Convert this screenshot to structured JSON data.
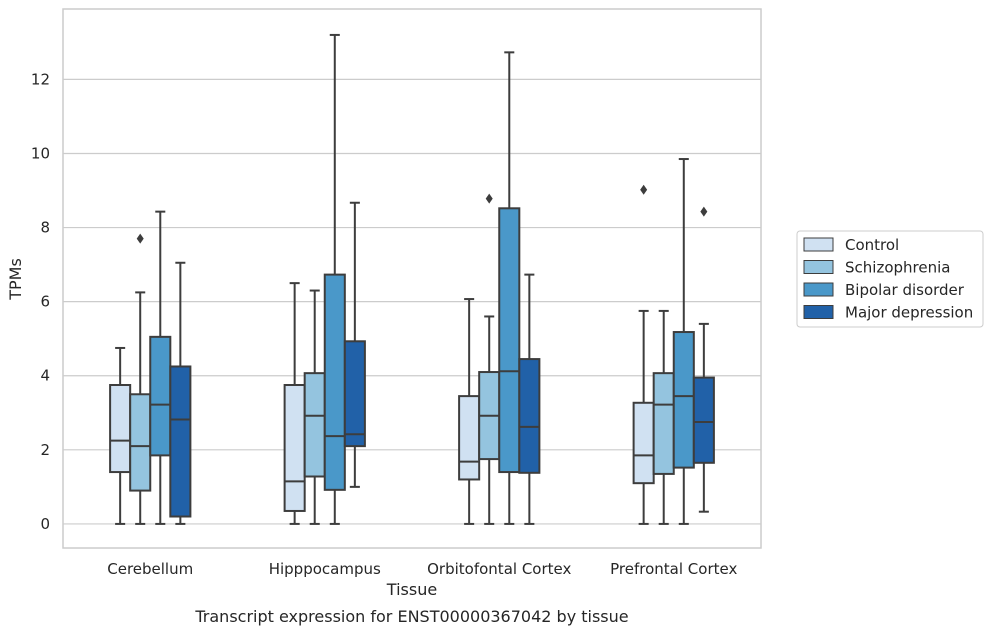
{
  "chart_data": {
    "type": "boxplot",
    "title": "",
    "caption": "Transcript expression for ENST00000367042 by tissue",
    "xlabel": "Tissue",
    "ylabel": "TPMs",
    "ylim": [
      -0.65,
      13.9
    ],
    "yticks": [
      "0",
      "2",
      "4",
      "6",
      "8",
      "10",
      "12"
    ],
    "grid": "horizontal",
    "legend_position": "right",
    "categories": [
      "Cerebellum",
      "Hipppocampus",
      "Orbitofontal Cortex",
      "Prefrontal Cortex"
    ],
    "series": [
      {
        "name": "Control",
        "color": "#d0e1f2",
        "boxes": [
          {
            "whislo": 0,
            "q1": 1.4,
            "med": 2.25,
            "q3": 3.75,
            "whishi": 4.75,
            "fliers": []
          },
          {
            "whislo": 0,
            "q1": 0.35,
            "med": 1.15,
            "q3": 3.75,
            "whishi": 6.5,
            "fliers": []
          },
          {
            "whislo": 0,
            "q1": 1.2,
            "med": 1.68,
            "q3": 3.45,
            "whishi": 6.07,
            "fliers": []
          },
          {
            "whislo": 0,
            "q1": 1.1,
            "med": 1.85,
            "q3": 3.27,
            "whishi": 5.75,
            "fliers": [
              9.02
            ]
          }
        ]
      },
      {
        "name": "Schizophrenia",
        "color": "#94c4df",
        "boxes": [
          {
            "whislo": 0,
            "q1": 0.9,
            "med": 2.1,
            "q3": 3.5,
            "whishi": 6.25,
            "fliers": [
              7.7
            ]
          },
          {
            "whislo": 0,
            "q1": 1.28,
            "med": 2.92,
            "q3": 4.07,
            "whishi": 6.3,
            "fliers": []
          },
          {
            "whislo": 0,
            "q1": 1.75,
            "med": 2.92,
            "q3": 4.1,
            "whishi": 5.6,
            "fliers": [
              8.78
            ]
          },
          {
            "whislo": 0,
            "q1": 1.35,
            "med": 3.22,
            "q3": 4.07,
            "whishi": 5.75,
            "fliers": []
          }
        ]
      },
      {
        "name": "Bipolar disorder",
        "color": "#4a98c9",
        "boxes": [
          {
            "whislo": 0,
            "q1": 1.85,
            "med": 3.22,
            "q3": 5.05,
            "whishi": 8.43,
            "fliers": []
          },
          {
            "whislo": 0,
            "q1": 0.92,
            "med": 2.37,
            "q3": 6.73,
            "whishi": 13.2,
            "fliers": []
          },
          {
            "whislo": 0,
            "q1": 1.4,
            "med": 4.12,
            "q3": 8.52,
            "whishi": 12.73,
            "fliers": []
          },
          {
            "whislo": 0,
            "q1": 1.52,
            "med": 3.45,
            "q3": 5.18,
            "whishi": 9.85,
            "fliers": []
          }
        ]
      },
      {
        "name": "Major depression",
        "color": "#2161a8",
        "boxes": [
          {
            "whislo": 0,
            "q1": 0.2,
            "med": 2.82,
            "q3": 4.25,
            "whishi": 7.05,
            "fliers": []
          },
          {
            "whislo": 1.0,
            "q1": 2.1,
            "med": 2.42,
            "q3": 4.93,
            "whishi": 8.67,
            "fliers": []
          },
          {
            "whislo": 0,
            "q1": 1.38,
            "med": 2.62,
            "q3": 4.45,
            "whishi": 6.73,
            "fliers": []
          },
          {
            "whislo": 0.33,
            "q1": 1.65,
            "med": 2.75,
            "q3": 3.95,
            "whishi": 5.4,
            "fliers": [
              8.43
            ]
          }
        ]
      }
    ]
  }
}
